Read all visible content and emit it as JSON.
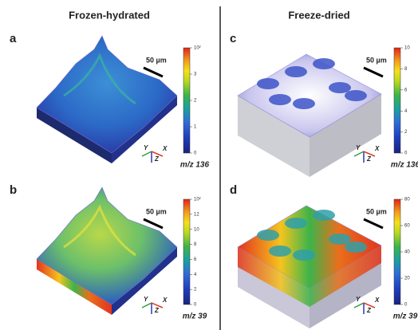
{
  "columns": [
    {
      "title": "Frozen-hydrated",
      "panels": [
        {
          "label": "a",
          "scale_bar": "50 µm",
          "colorbar_ticks": [
            "10²",
            "3",
            "2",
            "1",
            "0"
          ],
          "ion": "m/z 136",
          "axes": [
            "Y",
            "Z",
            "X"
          ]
        },
        {
          "label": "b",
          "scale_bar": "50 µm",
          "colorbar_ticks": [
            "10²",
            "12",
            "10",
            "8",
            "6",
            "4",
            "2",
            "0"
          ],
          "ion": "m/z 39",
          "axes": [
            "Y",
            "Z",
            "X"
          ]
        }
      ]
    },
    {
      "title": "Freeze-dried",
      "panels": [
        {
          "label": "c",
          "scale_bar": "50 µm",
          "colorbar_ticks": [
            "10",
            "8",
            "6",
            "4",
            "2",
            "0"
          ],
          "ion": "m/z 136",
          "axes": [
            "Y",
            "Z",
            "X"
          ]
        },
        {
          "label": "d",
          "scale_bar": "50 µm",
          "colorbar_ticks": [
            "80",
            "60",
            "40",
            "20",
            "0"
          ],
          "ion": "m/z 39",
          "axes": [
            "Y",
            "Z",
            "X"
          ]
        }
      ]
    }
  ]
}
